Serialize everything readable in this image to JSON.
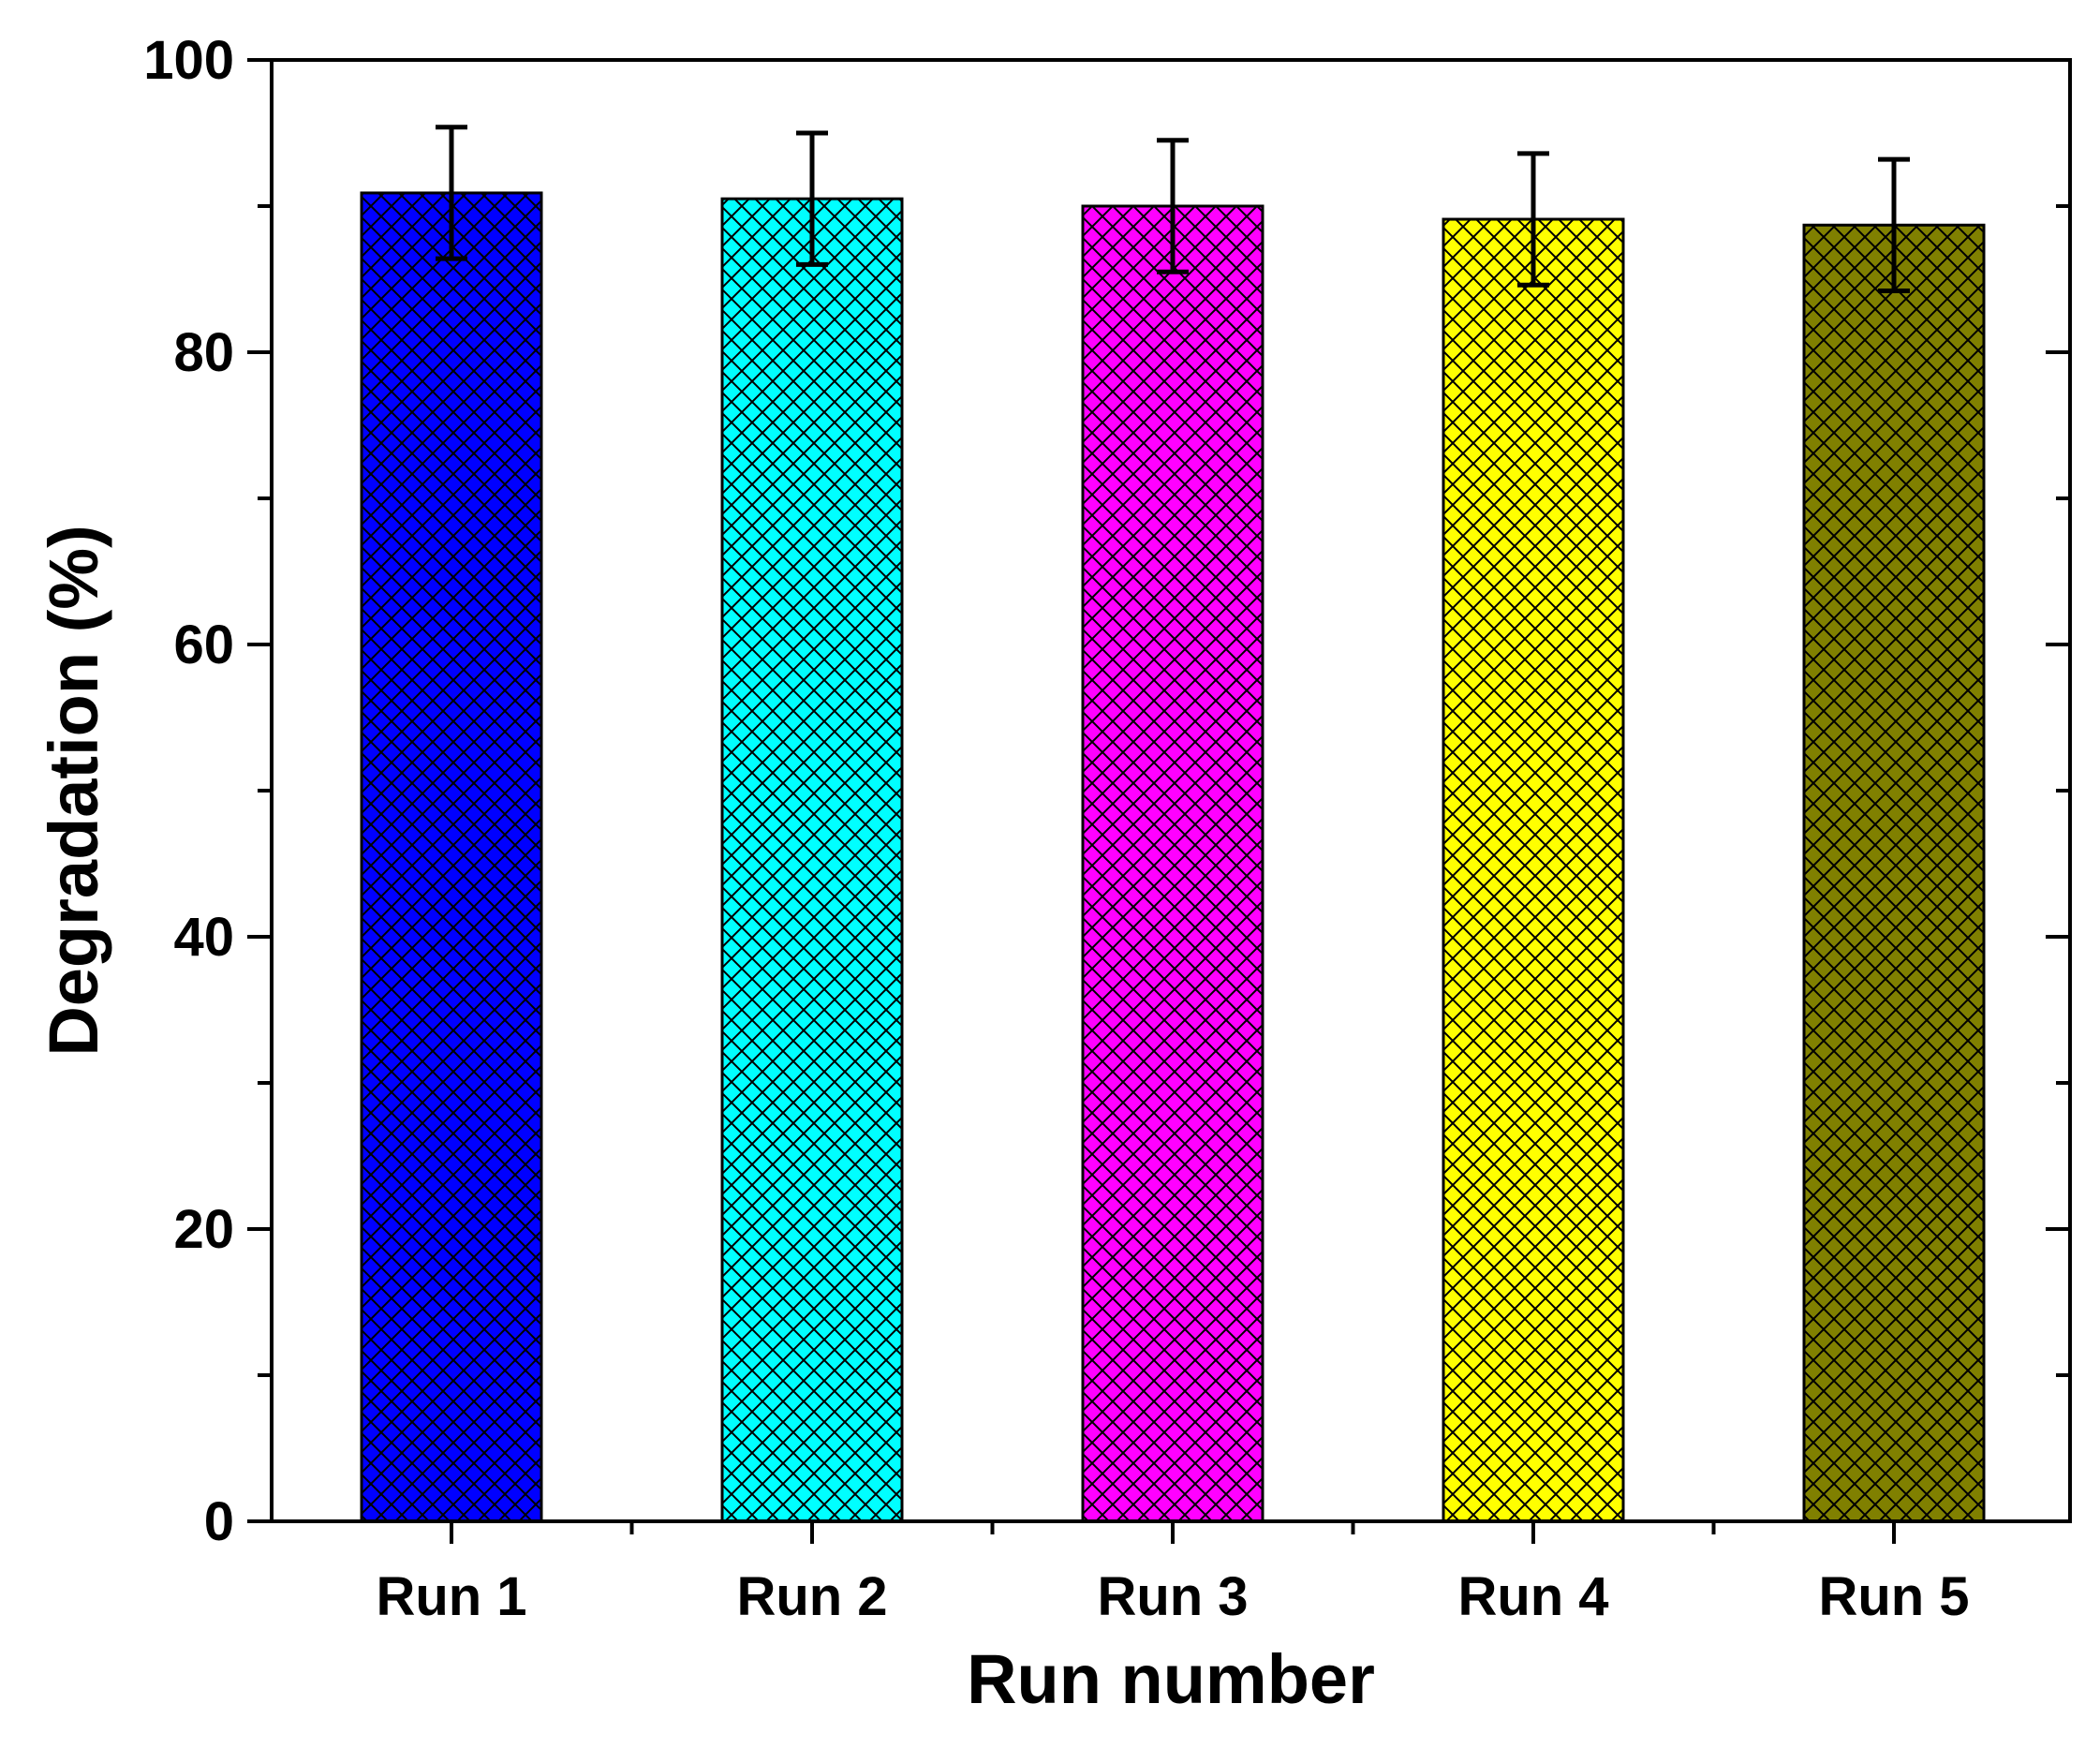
{
  "chart_data": {
    "type": "bar",
    "title": "",
    "xlabel": "Run number",
    "ylabel": "Degradation (%)",
    "categories": [
      "Run 1",
      "Run 2",
      "Run 3",
      "Run 4",
      "Run 5"
    ],
    "values": [
      90.9,
      90.5,
      90.0,
      89.1,
      88.7
    ],
    "errors": [
      4.5,
      4.5,
      4.5,
      4.5,
      4.5
    ],
    "bar_colors": [
      "#0000ff",
      "#00ffff",
      "#ff00ff",
      "#ffff00",
      "#808000"
    ],
    "bar_pattern": "crosshatch",
    "ylim": [
      0,
      100
    ],
    "yticks": [
      "0",
      "20",
      "40",
      "60",
      "80",
      "100"
    ],
    "ytick_values": [
      0,
      20,
      40,
      60,
      80,
      100
    ],
    "grid": false,
    "legend": "none"
  }
}
